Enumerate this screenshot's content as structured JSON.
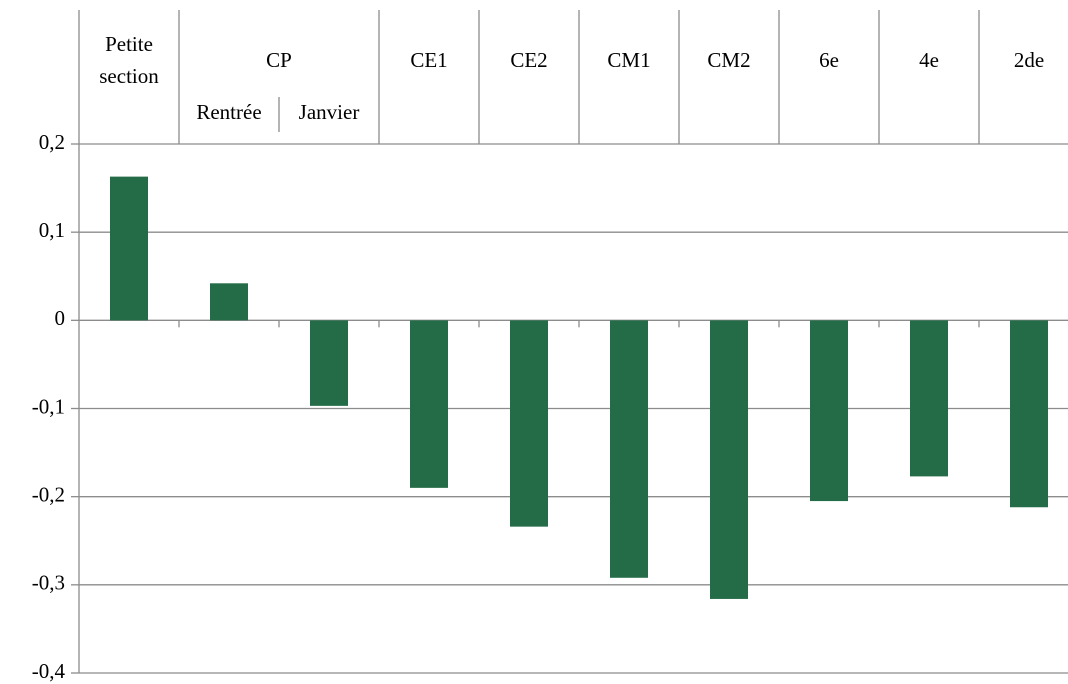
{
  "chart_data": {
    "type": "bar",
    "categories": [
      "Petite section",
      "Rentrée",
      "Janvier",
      "CE1",
      "CE2",
      "CM1",
      "CM2",
      "6e",
      "4e",
      "2de"
    ],
    "groups": [
      {
        "name": "CP",
        "members": [
          "Rentrée",
          "Janvier"
        ]
      }
    ],
    "values": [
      0.163,
      0.042,
      -0.097,
      -0.19,
      -0.234,
      -0.292,
      -0.316,
      -0.205,
      -0.177,
      -0.212
    ],
    "color": "#246b47",
    "ylim": [
      -0.4,
      0.2
    ],
    "yticks": [
      {
        "value": -0.4,
        "label": "-0,4"
      },
      {
        "value": -0.3,
        "label": "-0,3"
      },
      {
        "value": -0.2,
        "label": "-0,2"
      },
      {
        "value": -0.1,
        "label": "-0,1"
      },
      0,
      {
        "value": 0.1,
        "label": "0,1"
      },
      {
        "value": 0.2,
        "label": "0,2"
      }
    ],
    "grid": true
  }
}
